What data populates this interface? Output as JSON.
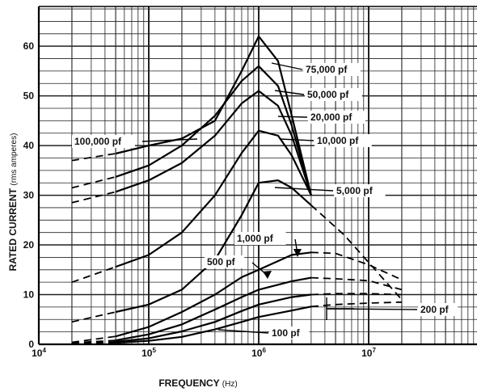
{
  "chart_data": {
    "type": "line",
    "xlabel": "FREQUENCY",
    "xlabel_unit": "(Hz)",
    "ylabel": "RATED CURRENT",
    "ylabel_unit": "(rms amperes)",
    "xscale": "log",
    "xlim": [
      10000,
      100000000
    ],
    "ylim": [
      0,
      68
    ],
    "grid": true,
    "x_ticks": [
      {
        "value": 10000,
        "base": "10",
        "exp": "4"
      },
      {
        "value": 100000,
        "base": "10",
        "exp": "5"
      },
      {
        "value": 1000000,
        "base": "10",
        "exp": "6"
      },
      {
        "value": 10000000,
        "base": "10",
        "exp": "7"
      }
    ],
    "y_ticks": [
      0,
      10,
      20,
      30,
      40,
      50,
      60
    ],
    "series": [
      {
        "name": "75,000 pf",
        "x": [
          20000,
          50000,
          100000,
          200000,
          400000,
          700000,
          1000000,
          1500000,
          2000000,
          3000000
        ],
        "y": [
          37,
          38.4,
          40,
          41.4,
          45,
          55,
          62,
          57,
          46,
          30
        ]
      },
      {
        "name": "50,000 pf",
        "x": [
          20000,
          50000,
          100000,
          200000,
          400000,
          700000,
          1000000,
          1500000,
          2000000,
          3000000
        ],
        "y": [
          31.5,
          33.7,
          36,
          40,
          46,
          53,
          56,
          52,
          44,
          30
        ]
      },
      {
        "name": "20,000 pf",
        "x": [
          20000,
          50000,
          100000,
          200000,
          400000,
          700000,
          1000000,
          1500000,
          2000000,
          3000000
        ],
        "y": [
          28.5,
          30.7,
          33,
          36.5,
          42,
          48.5,
          51,
          48,
          42,
          30
        ]
      },
      {
        "name": "10,000 pf",
        "x": [
          20000,
          50000,
          100000,
          200000,
          400000,
          700000,
          1000000,
          1500000,
          2000000,
          3000000
        ],
        "y": [
          12.5,
          15.6,
          18,
          22.5,
          30,
          38.5,
          43,
          42,
          38,
          30
        ]
      },
      {
        "name": "5,000 pf",
        "x": [
          20000,
          50000,
          100000,
          200000,
          400000,
          700000,
          1000000,
          1500000,
          2000000,
          3000000,
          6000000,
          20000000
        ],
        "y": [
          4.5,
          6.5,
          8,
          11,
          17,
          26,
          32.5,
          33,
          31.5,
          28,
          22,
          9
        ]
      },
      {
        "name": "1,000 pf",
        "x": [
          20000,
          50000,
          100000,
          200000,
          400000,
          700000,
          1000000,
          2000000,
          3000000,
          5000000,
          10000000,
          20000000
        ],
        "y": [
          0.4,
          1.6,
          3.5,
          6.5,
          10,
          13.5,
          15,
          18,
          18.5,
          18.3,
          16,
          13
        ]
      },
      {
        "name": "500 pf",
        "x": [
          20000,
          50000,
          100000,
          200000,
          400000,
          700000,
          1000000,
          2000000,
          3000000,
          5000000,
          10000000,
          20000000
        ],
        "y": [
          0.3,
          0.8,
          2,
          4,
          7,
          9.5,
          11,
          12.7,
          13.4,
          13.2,
          12.8,
          11
        ]
      },
      {
        "name": "200 pf",
        "x": [
          20000,
          50000,
          100000,
          200000,
          400000,
          700000,
          1000000,
          2000000,
          3000000,
          5000000,
          10000000,
          20000000
        ],
        "y": [
          0.2,
          0.5,
          1.2,
          2.6,
          4.5,
          6.7,
          8,
          9.5,
          10,
          10.2,
          10.2,
          10
        ]
      },
      {
        "name": "100 pf",
        "x": [
          20000,
          50000,
          100000,
          200000,
          400000,
          700000,
          1000000,
          2000000,
          3000000,
          5000000,
          10000000,
          20000000
        ],
        "y": [
          0.1,
          0.3,
          0.7,
          1.5,
          3,
          4.5,
          5.5,
          6.8,
          7.6,
          8,
          8.3,
          8.5
        ]
      }
    ],
    "annotations": [
      "75,000 pf",
      "50,000 pf",
      "20,000 pf",
      "10,000 pf",
      "5,000 pf",
      "100,000 pf",
      "1,000 pf",
      "500 pf",
      "200 pf",
      "100 pf"
    ]
  }
}
